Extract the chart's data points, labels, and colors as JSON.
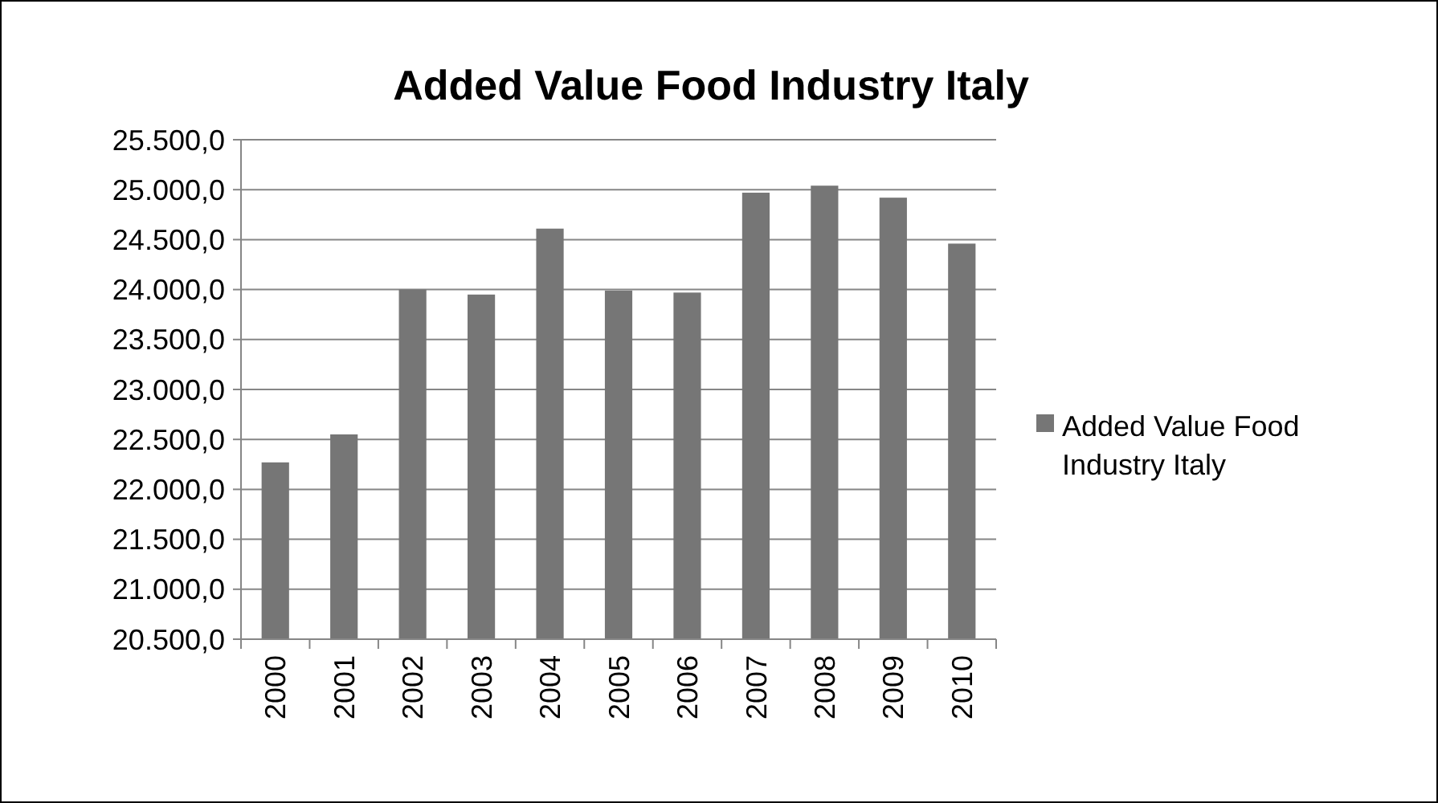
{
  "chart_data": {
    "type": "bar",
    "title": "Added Value Food Industry Italy",
    "categories": [
      "2000",
      "2001",
      "2002",
      "2003",
      "2004",
      "2005",
      "2006",
      "2007",
      "2008",
      "2009",
      "2010"
    ],
    "series": [
      {
        "name": "Added Value Food Industry Italy",
        "color": "#767676",
        "values": [
          22270,
          22550,
          24000,
          23950,
          24610,
          23990,
          23970,
          24970,
          25040,
          24920,
          24460
        ]
      }
    ],
    "ylim": [
      20500,
      25500
    ],
    "yticks": [
      {
        "value": 20500,
        "label": "20.500,0"
      },
      {
        "value": 21000,
        "label": "21.000,0"
      },
      {
        "value": 21500,
        "label": "21.500,0"
      },
      {
        "value": 22000,
        "label": "22.000,0"
      },
      {
        "value": 22500,
        "label": "22.500,0"
      },
      {
        "value": 23000,
        "label": "23.000,0"
      },
      {
        "value": 23500,
        "label": "23.500,0"
      },
      {
        "value": 24000,
        "label": "24.000,0"
      },
      {
        "value": 24500,
        "label": "24.500,0"
      },
      {
        "value": 25000,
        "label": "25.000,0"
      },
      {
        "value": 25500,
        "label": "25.500,0"
      }
    ],
    "grid": "y",
    "legend": "right"
  }
}
